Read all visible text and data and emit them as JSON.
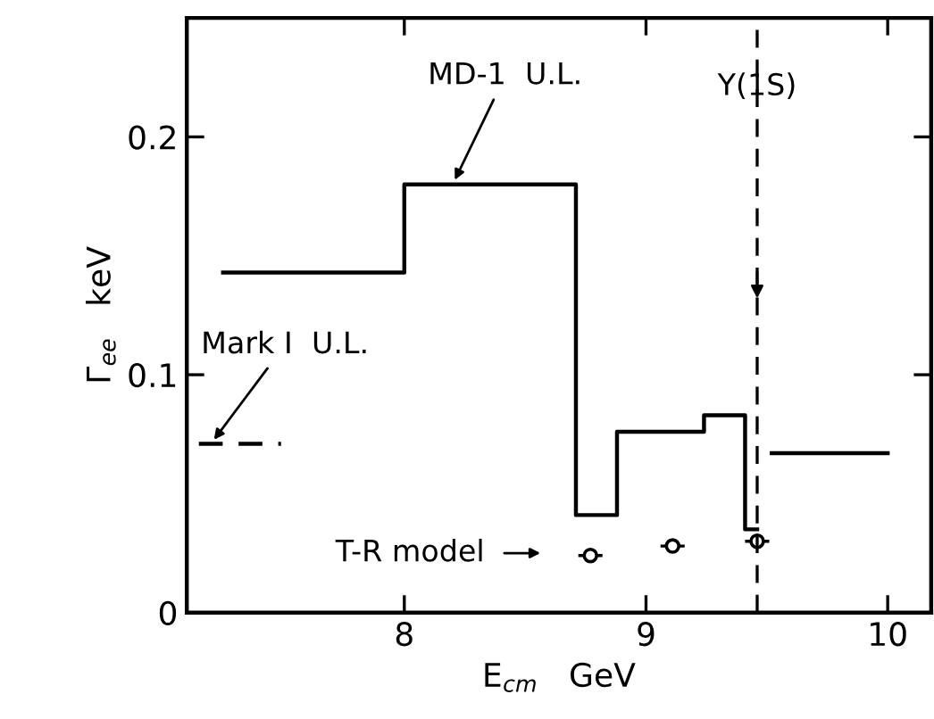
{
  "chart_data": {
    "type": "step",
    "xlabel": "E$_{cm}$   GeV",
    "ylabel": "Γ$_{ee}$   keV",
    "xlim": [
      7.1,
      10.18
    ],
    "ylim": [
      0,
      0.25
    ],
    "xticks": [
      8,
      9,
      10
    ],
    "yticks": [
      0,
      {
        "value": 0.1,
        "label": "0.1"
      },
      {
        "value": 0.2,
        "label": "0.2"
      }
    ],
    "grid": false,
    "legend": false,
    "series": [
      {
        "color": "#000000",
        "line_style": "solid",
        "x": [
          7.25,
          8.0,
          8.71,
          8.88,
          9.24,
          9.41,
          9.46,
          9.52,
          10.0
        ],
        "values": [
          0.143,
          0.18,
          0.041,
          0.076,
          0.083,
          0.035,
          null,
          0.067,
          0.067
        ]
      },
      {
        "type": "line",
        "color": "#000000",
        "line_style": "dashed",
        "x": [
          7.15,
          7.49
        ],
        "values": [
          0.071,
          0.071
        ]
      },
      {
        "type": "scatter",
        "color": "#000000",
        "marker": "circle",
        "x": [
          8.77,
          9.11,
          9.46
        ],
        "values": [
          0.024,
          0.028,
          0.03
        ],
        "xerrors": [
          0.05,
          0.05,
          0.05
        ]
      }
    ],
    "ref_lines": [
      {
        "axis": "x",
        "value": 9.46,
        "label": "Υ(1S)",
        "line_style": "dashed",
        "color": "#000000"
      }
    ],
    "annotations": [
      {
        "text": "MD-1  U.L.",
        "x": 8.2,
        "y": 0.18
      },
      {
        "text": "Mark I  U.L.",
        "x": 7.2,
        "y": 0.071
      },
      "T-R model"
    ]
  }
}
